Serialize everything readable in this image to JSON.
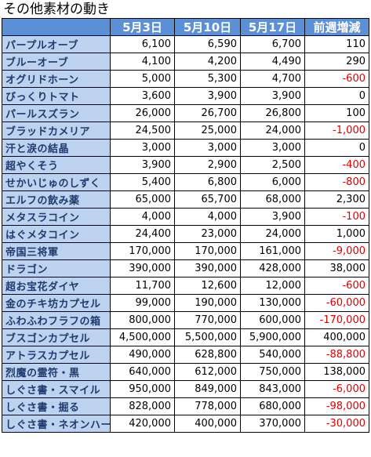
{
  "title": "その他素材の動き",
  "headers": [
    "",
    "5月3日",
    "5月10日",
    "5月17日",
    "前週増減"
  ],
  "colors": {
    "header_bg": "#5b8fd6",
    "name_bg": "#bcd2ee",
    "negative": "#e00000"
  },
  "rows": [
    {
      "name": "パープルオーブ",
      "w1": "6,100",
      "w2": "6,590",
      "w3": "6,700",
      "diff": "110"
    },
    {
      "name": "ブルーオーブ",
      "w1": "4,100",
      "w2": "4,200",
      "w3": "4,490",
      "diff": "290"
    },
    {
      "name": "オグリドホーン",
      "w1": "5,000",
      "w2": "5,300",
      "w3": "4,700",
      "diff": "-600"
    },
    {
      "name": "びっくりトマト",
      "w1": "3,600",
      "w2": "3,900",
      "w3": "3,900",
      "diff": "0"
    },
    {
      "name": "パールスズラン",
      "w1": "26,000",
      "w2": "26,700",
      "w3": "26,800",
      "diff": "100"
    },
    {
      "name": "ブラッドカメリア",
      "w1": "24,500",
      "w2": "25,000",
      "w3": "24,000",
      "diff": "-1,000"
    },
    {
      "name": "汗と涙の結晶",
      "w1": "3,000",
      "w2": "3,000",
      "w3": "3,000",
      "diff": "0"
    },
    {
      "name": "超やくそう",
      "w1": "3,900",
      "w2": "2,900",
      "w3": "2,500",
      "diff": "-400"
    },
    {
      "name": "せかいじゅのしずく",
      "w1": "5,400",
      "w2": "6,800",
      "w3": "6,000",
      "diff": "-800"
    },
    {
      "name": "エルフの飲み薬",
      "w1": "65,000",
      "w2": "65,700",
      "w3": "68,000",
      "diff": "2,300"
    },
    {
      "name": "メタスラコイン",
      "w1": "4,000",
      "w2": "4,000",
      "w3": "3,900",
      "diff": "-100"
    },
    {
      "name": "はぐメタコイン",
      "w1": "24,400",
      "w2": "23,000",
      "w3": "24,000",
      "diff": "1,000"
    },
    {
      "name": "帝国三将軍",
      "w1": "170,000",
      "w2": "170,000",
      "w3": "161,000",
      "diff": "-9,000"
    },
    {
      "name": "ドラゴン",
      "w1": "390,000",
      "w2": "390,000",
      "w3": "428,000",
      "diff": "38,000"
    },
    {
      "name": "超お宝花ダイヤ",
      "w1": "11,700",
      "w2": "12,600",
      "w3": "12,000",
      "diff": "-600"
    },
    {
      "name": "金のチキ坊カプセル",
      "w1": "99,000",
      "w2": "190,000",
      "w3": "130,000",
      "diff": "-60,000"
    },
    {
      "name": "ふわふわフラフの箱",
      "w1": "800,000",
      "w2": "770,000",
      "w3": "600,000",
      "diff": "-170,000"
    },
    {
      "name": "ブスゴンカプセル",
      "w1": "4,500,000",
      "w2": "5,500,000",
      "w3": "5,900,000",
      "diff": "400,000"
    },
    {
      "name": "アトラスカプセル",
      "w1": "490,000",
      "w2": "628,800",
      "w3": "540,000",
      "diff": "-88,800"
    },
    {
      "name": "烈魔の霊符・黒",
      "w1": "640,000",
      "w2": "612,000",
      "w3": "750,000",
      "diff": "138,000"
    },
    {
      "name": "しぐさ書・スマイル",
      "w1": "950,000",
      "w2": "849,000",
      "w3": "843,000",
      "diff": "-6,000"
    },
    {
      "name": "しぐさ書・掘る",
      "w1": "828,000",
      "w2": "778,000",
      "w3": "680,000",
      "diff": "-98,000"
    },
    {
      "name": "しぐさ書・ネオンハート",
      "w1": "420,000",
      "w2": "400,000",
      "w3": "370,000",
      "diff": "-30,000"
    }
  ]
}
